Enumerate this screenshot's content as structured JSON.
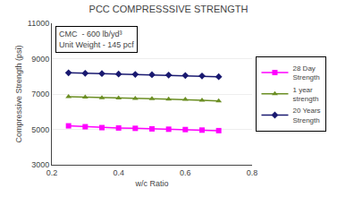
{
  "chart_data": {
    "type": "line",
    "title": "PCC COMPRESSSIVE STRENGTH",
    "x_label": "w/c Ratio",
    "y_label": "Compressive Strength (psi)",
    "x": [
      0.25,
      0.3,
      0.35,
      0.4,
      0.45,
      0.5,
      0.55,
      0.6,
      0.65,
      0.7
    ],
    "series": [
      {
        "name": "28 Day\nStrength",
        "color": "#FF00FF",
        "marker": "square",
        "values": [
          5200,
          5150,
          5100,
          5080,
          5060,
          5030,
          5010,
          4990,
          4960,
          4930
        ]
      },
      {
        "name": "1 year\nstrength",
        "color": "#6B8E23",
        "marker": "triangle-up",
        "values": [
          6850,
          6820,
          6790,
          6770,
          6750,
          6730,
          6710,
          6690,
          6650,
          6610
        ]
      },
      {
        "name": "20 Years\nStrength",
        "color": "#191970",
        "marker": "diamond",
        "values": [
          8200,
          8175,
          8155,
          8130,
          8110,
          8090,
          8070,
          8045,
          8020,
          7980
        ]
      }
    ],
    "xlim": [
      0.2,
      0.8
    ],
    "ylim": [
      3000,
      11000
    ],
    "xticks": [
      0.2,
      0.4,
      0.6,
      0.8
    ],
    "yticks": [
      3000,
      5000,
      7000,
      9000,
      11000
    ],
    "grid": "y",
    "legend": "right",
    "annotations": [
      "CMC  - 600 lb/yd³\nUnit Weight - 145 pcf"
    ]
  }
}
